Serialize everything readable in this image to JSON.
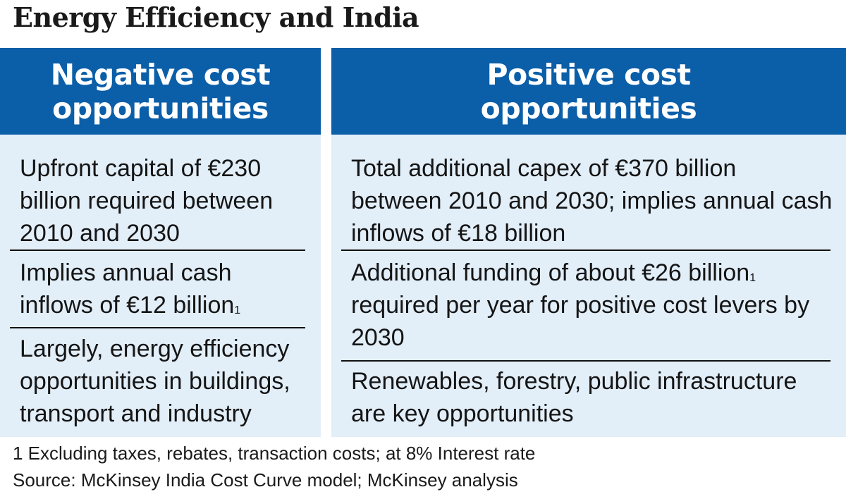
{
  "title": "Energy Efficiency and India",
  "left": {
    "header_line1": "Negative cost",
    "header_line2": "opportunities",
    "rows": [
      "Upfront capital of €230 billion required between 2010 and 2030",
      "Implies annual  cash inflows of €12 billion",
      "Largely, energy efficiency opportunities in buildings, transport and industry"
    ],
    "row2_sup": "1"
  },
  "right": {
    "header_line1": "Positive cost",
    "header_line2": "opportunities",
    "rows": [
      "Total additional capex of €370 billion between 2010 and 2030; implies annual cash inflows of €18 billion",
      "Additional funding of about €26 billion",
      "required per year for positive cost levers by 2030",
      "Renewables, forestry, public infrastructure are key opportunities"
    ],
    "row2_sup": "1"
  },
  "footnote": "1 Excluding taxes, rebates, transaction costs; at 8% Interest rate",
  "source": "Source: McKinsey India Cost Curve model; McKinsey analysis"
}
